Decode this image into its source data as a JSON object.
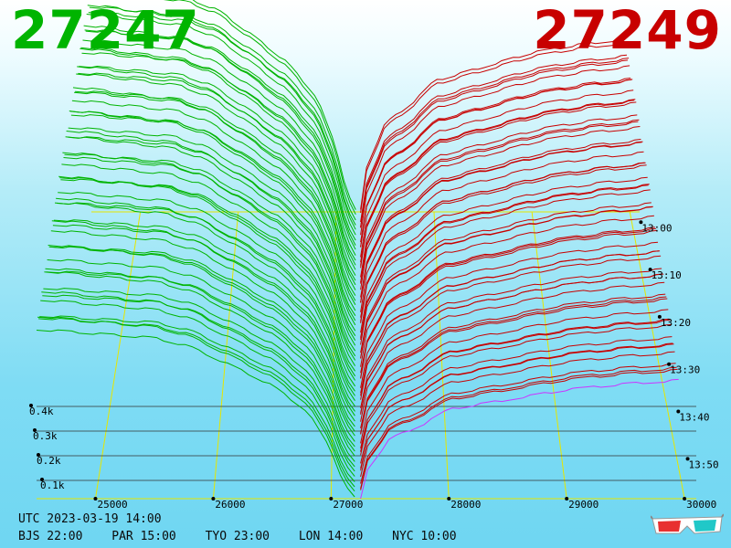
{
  "header": {
    "bid_price": "27247",
    "ask_price": "27249",
    "bid_color": "#00b400",
    "ask_color": "#c80000"
  },
  "footer": {
    "utc": "UTC 2023-03-19 14:00",
    "zones": [
      "BJS 22:00",
      "PAR 15:00",
      "TYO 23:00",
      "LON 14:00",
      "NYC 10:00"
    ]
  },
  "icons": {
    "stereo_toggle": "3d-glasses-icon"
  },
  "chart_data": {
    "type": "area",
    "view": "3d-depth-history",
    "x_axis": {
      "label": "",
      "ticks": [
        25000,
        26000,
        27000,
        28000,
        29000,
        30000
      ],
      "range": [
        24500,
        30100
      ]
    },
    "z_axis": {
      "label": "",
      "ticks": [
        "13:00",
        "13:10",
        "13:20",
        "13:30",
        "13:40",
        "13:50"
      ]
    },
    "y_axis": {
      "label": "",
      "ticks": [
        "0.1k",
        "0.2k",
        "0.3k",
        "0.4k"
      ],
      "range": [
        0,
        1.0
      ]
    },
    "mid_price": 27248,
    "series": [
      {
        "side": "bid",
        "color": "#00b400",
        "x": [
          24500,
          25000,
          25500,
          25800,
          26200,
          26500,
          26800,
          27000,
          27100,
          27200
        ],
        "y": [
          0.78,
          0.76,
          0.74,
          0.7,
          0.6,
          0.52,
          0.4,
          0.22,
          0.08,
          0.0
        ]
      },
      {
        "side": "ask",
        "color": "#c80000",
        "x": [
          27250,
          27300,
          27500,
          27800,
          28000,
          28500,
          29000,
          29500,
          30000
        ],
        "y": [
          0.0,
          0.14,
          0.3,
          0.38,
          0.45,
          0.5,
          0.55,
          0.58,
          0.6
        ]
      }
    ]
  }
}
